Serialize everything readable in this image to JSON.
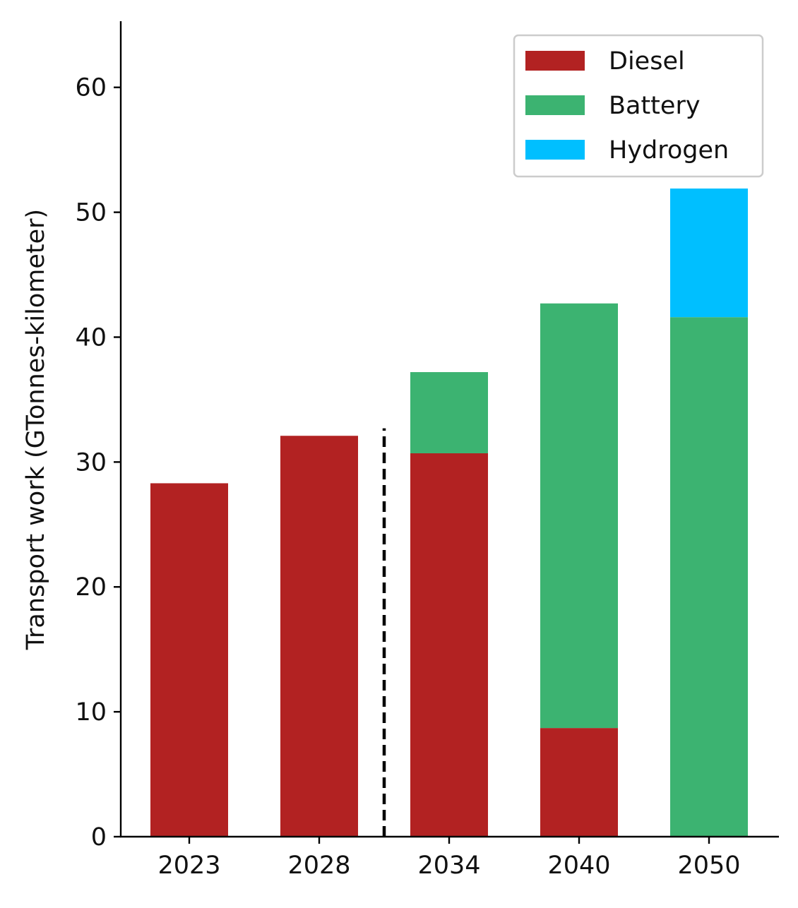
{
  "chart_data": {
    "type": "bar",
    "stacked": true,
    "title": "",
    "xlabel": "",
    "ylabel": "Transport work (GTonnes-kilometer)",
    "categories": [
      "2023",
      "2028",
      "2034",
      "2040",
      "2050"
    ],
    "series": [
      {
        "name": "Diesel",
        "color": "#b22222",
        "values": [
          28.3,
          32.1,
          30.7,
          8.7,
          0
        ]
      },
      {
        "name": "Battery",
        "color": "#3cb371",
        "values": [
          0,
          0,
          6.5,
          34.0,
          41.6
        ]
      },
      {
        "name": "Hydrogen",
        "color": "#00bfff",
        "values": [
          0,
          0,
          0,
          0,
          10.3
        ]
      }
    ],
    "ylim": [
      0,
      65.3
    ],
    "yticks": [
      0,
      10,
      20,
      30,
      40,
      50,
      60
    ],
    "ytick_labels": [
      "0",
      "10",
      "20",
      "30",
      "40",
      "50",
      "60"
    ],
    "reference_line": {
      "style": "dashed",
      "position": "between 2028 and 2034",
      "x": 1.5,
      "y_top": 32.7
    },
    "legend": {
      "position": "top-right",
      "entries": [
        "Diesel",
        "Battery",
        "Hydrogen"
      ]
    },
    "grid": false
  }
}
